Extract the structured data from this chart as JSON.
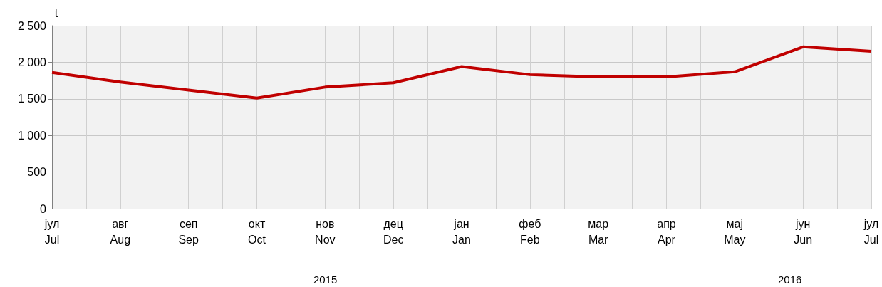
{
  "chart_data": {
    "type": "line",
    "ylabel": "t",
    "categories": [
      "јул\nJul",
      "авг\nAug",
      "сеп\nSep",
      "окт\nOct",
      "нов\nNov",
      "дец\nDec",
      "јан\nJan",
      "феб\nFeb",
      "мар\nMar",
      "апр\nApr",
      "мај\nMay",
      "јун\nJun",
      "јул\nJul"
    ],
    "series": [
      {
        "color": "#c00000",
        "values": [
          1860,
          1730,
          1620,
          1510,
          1660,
          1720,
          1940,
          1830,
          1800,
          1800,
          1870,
          2210,
          2150
        ]
      }
    ],
    "ylim": [
      0,
      2500
    ],
    "yticks": [
      0,
      500,
      {
        "value": 1000,
        "label": "1 000"
      },
      {
        "value": 1500,
        "label": "1 500"
      },
      {
        "value": 2000,
        "label": "2 000"
      },
      {
        "value": 2500,
        "label": "2 500"
      }
    ],
    "annotations": [
      "2015",
      "2016"
    ],
    "grid": true,
    "marker": "none",
    "line_style": "solid"
  }
}
